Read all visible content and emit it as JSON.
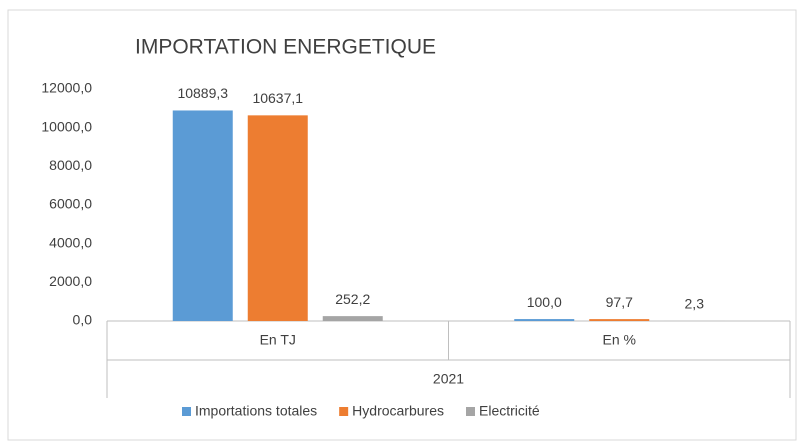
{
  "chart_data": {
    "type": "bar",
    "title": "IMPORTATION ENERGETIQUE",
    "categories": [
      "En TJ",
      "En %"
    ],
    "group_label": "2021",
    "series": [
      {
        "name": "Importations totales",
        "color": "#5b9bd5",
        "values": [
          10889.3,
          100.0
        ],
        "value_labels": [
          "10889,3",
          "100,0"
        ]
      },
      {
        "name": "Hydrocarbures",
        "color": "#ed7d31",
        "values": [
          10637.1,
          97.7
        ],
        "value_labels": [
          "10637,1",
          "97,7"
        ]
      },
      {
        "name": "Electricité",
        "color": "#a5a5a5",
        "values": [
          252.2,
          2.3
        ],
        "value_labels": [
          "252,2",
          "2,3"
        ]
      }
    ],
    "ylim": [
      0,
      12000
    ],
    "yticks": [
      {
        "value": 0,
        "label": "0,0"
      },
      {
        "value": 2000,
        "label": "2000,0"
      },
      {
        "value": 4000,
        "label": "4000,0"
      },
      {
        "value": 6000,
        "label": "6000,0"
      },
      {
        "value": 8000,
        "label": "8000,0"
      },
      {
        "value": 10000,
        "label": "10000,0"
      },
      {
        "value": 12000,
        "label": "12000,0"
      }
    ],
    "grid": false,
    "legend": "bottom"
  }
}
